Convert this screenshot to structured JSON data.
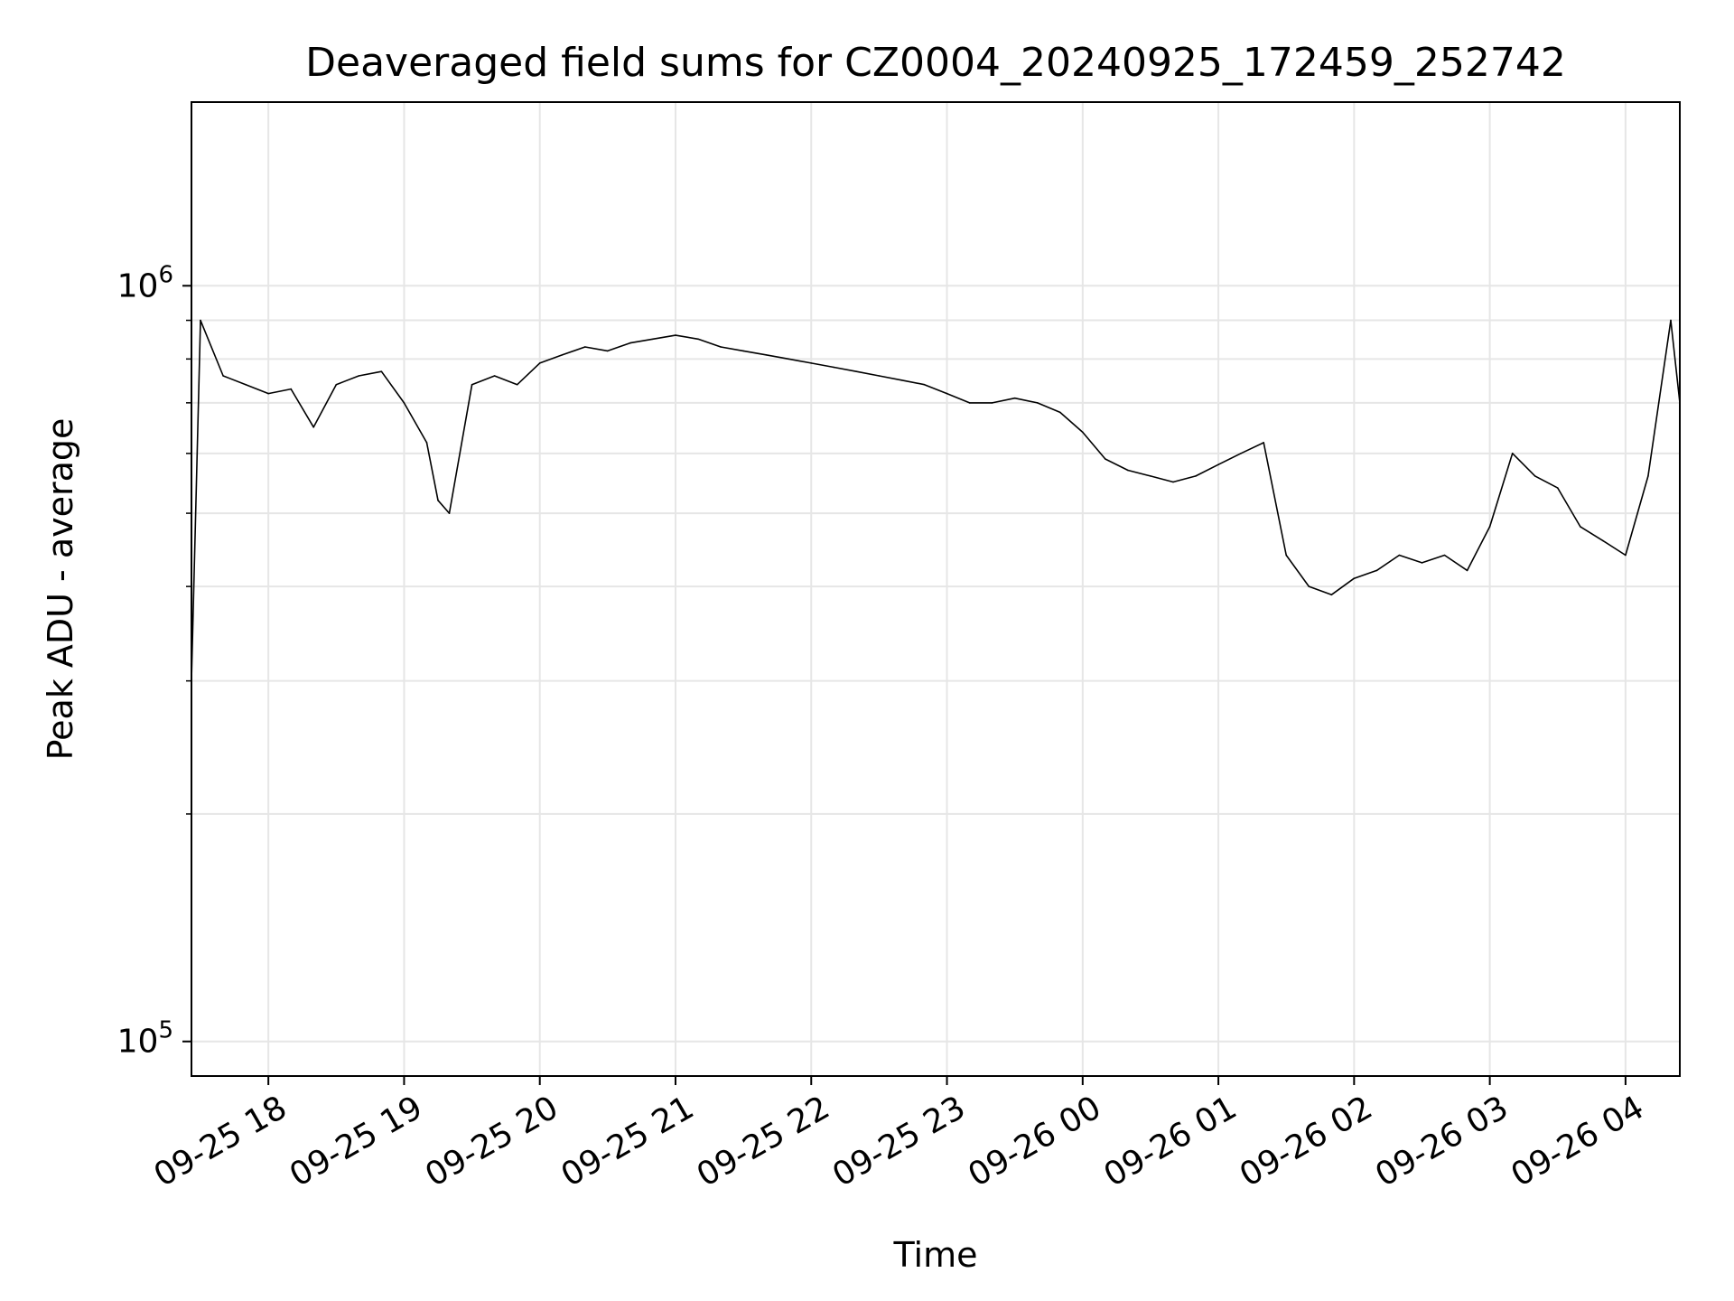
{
  "chart_data": {
    "type": "line",
    "title": "Deaveraged field sums for CZ0004_20240925_172459_252742",
    "xlabel": "Time",
    "ylabel": "Peak ADU - average",
    "y_scale": "log",
    "ylim": [
      90000,
      1750000
    ],
    "xlim": [
      "2024-09-25 17:26",
      "2024-09-26 04:24"
    ],
    "grid": true,
    "line_color": "#000000",
    "grid_color": "#e6e6e6",
    "y_ticks": [
      {
        "value": 100000,
        "base": "10",
        "exp": "5"
      },
      {
        "value": 1000000,
        "base": "10",
        "exp": "6"
      }
    ],
    "x_ticks": [
      {
        "value": "2024-09-25 18:00",
        "label": "09-25 18"
      },
      {
        "value": "2024-09-25 19:00",
        "label": "09-25 19"
      },
      {
        "value": "2024-09-25 20:00",
        "label": "09-25 20"
      },
      {
        "value": "2024-09-25 21:00",
        "label": "09-25 21"
      },
      {
        "value": "2024-09-25 22:00",
        "label": "09-25 22"
      },
      {
        "value": "2024-09-25 23:00",
        "label": "09-25 23"
      },
      {
        "value": "2024-09-26 00:00",
        "label": "09-26 00"
      },
      {
        "value": "2024-09-26 01:00",
        "label": "09-26 01"
      },
      {
        "value": "2024-09-26 02:00",
        "label": "09-26 02"
      },
      {
        "value": "2024-09-26 03:00",
        "label": "09-26 03"
      },
      {
        "value": "2024-09-26 04:00",
        "label": "09-26 04"
      }
    ],
    "series": [
      {
        "x": [
          "2024-09-25 17:26",
          "2024-09-25 17:30",
          "2024-09-25 17:40",
          "2024-09-25 17:50",
          "2024-09-25 18:00",
          "2024-09-25 18:10",
          "2024-09-25 18:20",
          "2024-09-25 18:30",
          "2024-09-25 18:40",
          "2024-09-25 18:50",
          "2024-09-25 19:00",
          "2024-09-25 19:10",
          "2024-09-25 19:15",
          "2024-09-25 19:20",
          "2024-09-25 19:30",
          "2024-09-25 19:40",
          "2024-09-25 19:50",
          "2024-09-25 20:00",
          "2024-09-25 20:10",
          "2024-09-25 20:20",
          "2024-09-25 20:30",
          "2024-09-25 20:40",
          "2024-09-25 20:50",
          "2024-09-25 21:00",
          "2024-09-25 21:10",
          "2024-09-25 21:20",
          "2024-09-25 21:30",
          "2024-09-25 21:40",
          "2024-09-25 21:50",
          "2024-09-25 22:00",
          "2024-09-25 22:10",
          "2024-09-25 22:20",
          "2024-09-25 22:30",
          "2024-09-25 22:40",
          "2024-09-25 22:50",
          "2024-09-25 23:00",
          "2024-09-25 23:10",
          "2024-09-25 23:20",
          "2024-09-25 23:30",
          "2024-09-25 23:40",
          "2024-09-25 23:50",
          "2024-09-26 00:00",
          "2024-09-26 00:10",
          "2024-09-26 00:20",
          "2024-09-26 00:30",
          "2024-09-26 00:40",
          "2024-09-26 00:50",
          "2024-09-26 01:00",
          "2024-09-26 01:10",
          "2024-09-26 01:20",
          "2024-09-26 01:30",
          "2024-09-26 01:40",
          "2024-09-26 01:50",
          "2024-09-26 02:00",
          "2024-09-26 02:10",
          "2024-09-26 02:20",
          "2024-09-26 02:30",
          "2024-09-26 02:40",
          "2024-09-26 02:50",
          "2024-09-26 03:00",
          "2024-09-26 03:10",
          "2024-09-26 03:20",
          "2024-09-26 03:30",
          "2024-09-26 03:40",
          "2024-09-26 03:50",
          "2024-09-26 04:00",
          "2024-09-26 04:10",
          "2024-09-26 04:20",
          "2024-09-26 04:24"
        ],
        "y": [
          300000,
          900000,
          760000,
          740000,
          720000,
          730000,
          650000,
          740000,
          760000,
          770000,
          700000,
          620000,
          520000,
          500000,
          740000,
          760000,
          740000,
          790000,
          810000,
          830000,
          820000,
          840000,
          850000,
          860000,
          850000,
          830000,
          820000,
          810000,
          800000,
          790000,
          780000,
          770000,
          760000,
          750000,
          740000,
          720000,
          700000,
          700000,
          710000,
          700000,
          680000,
          640000,
          590000,
          570000,
          560000,
          550000,
          560000,
          580000,
          600000,
          620000,
          440000,
          400000,
          390000,
          410000,
          420000,
          440000,
          430000,
          440000,
          420000,
          480000,
          600000,
          560000,
          540000,
          480000,
          460000,
          440000,
          560000,
          900000,
          700000
        ]
      }
    ]
  }
}
